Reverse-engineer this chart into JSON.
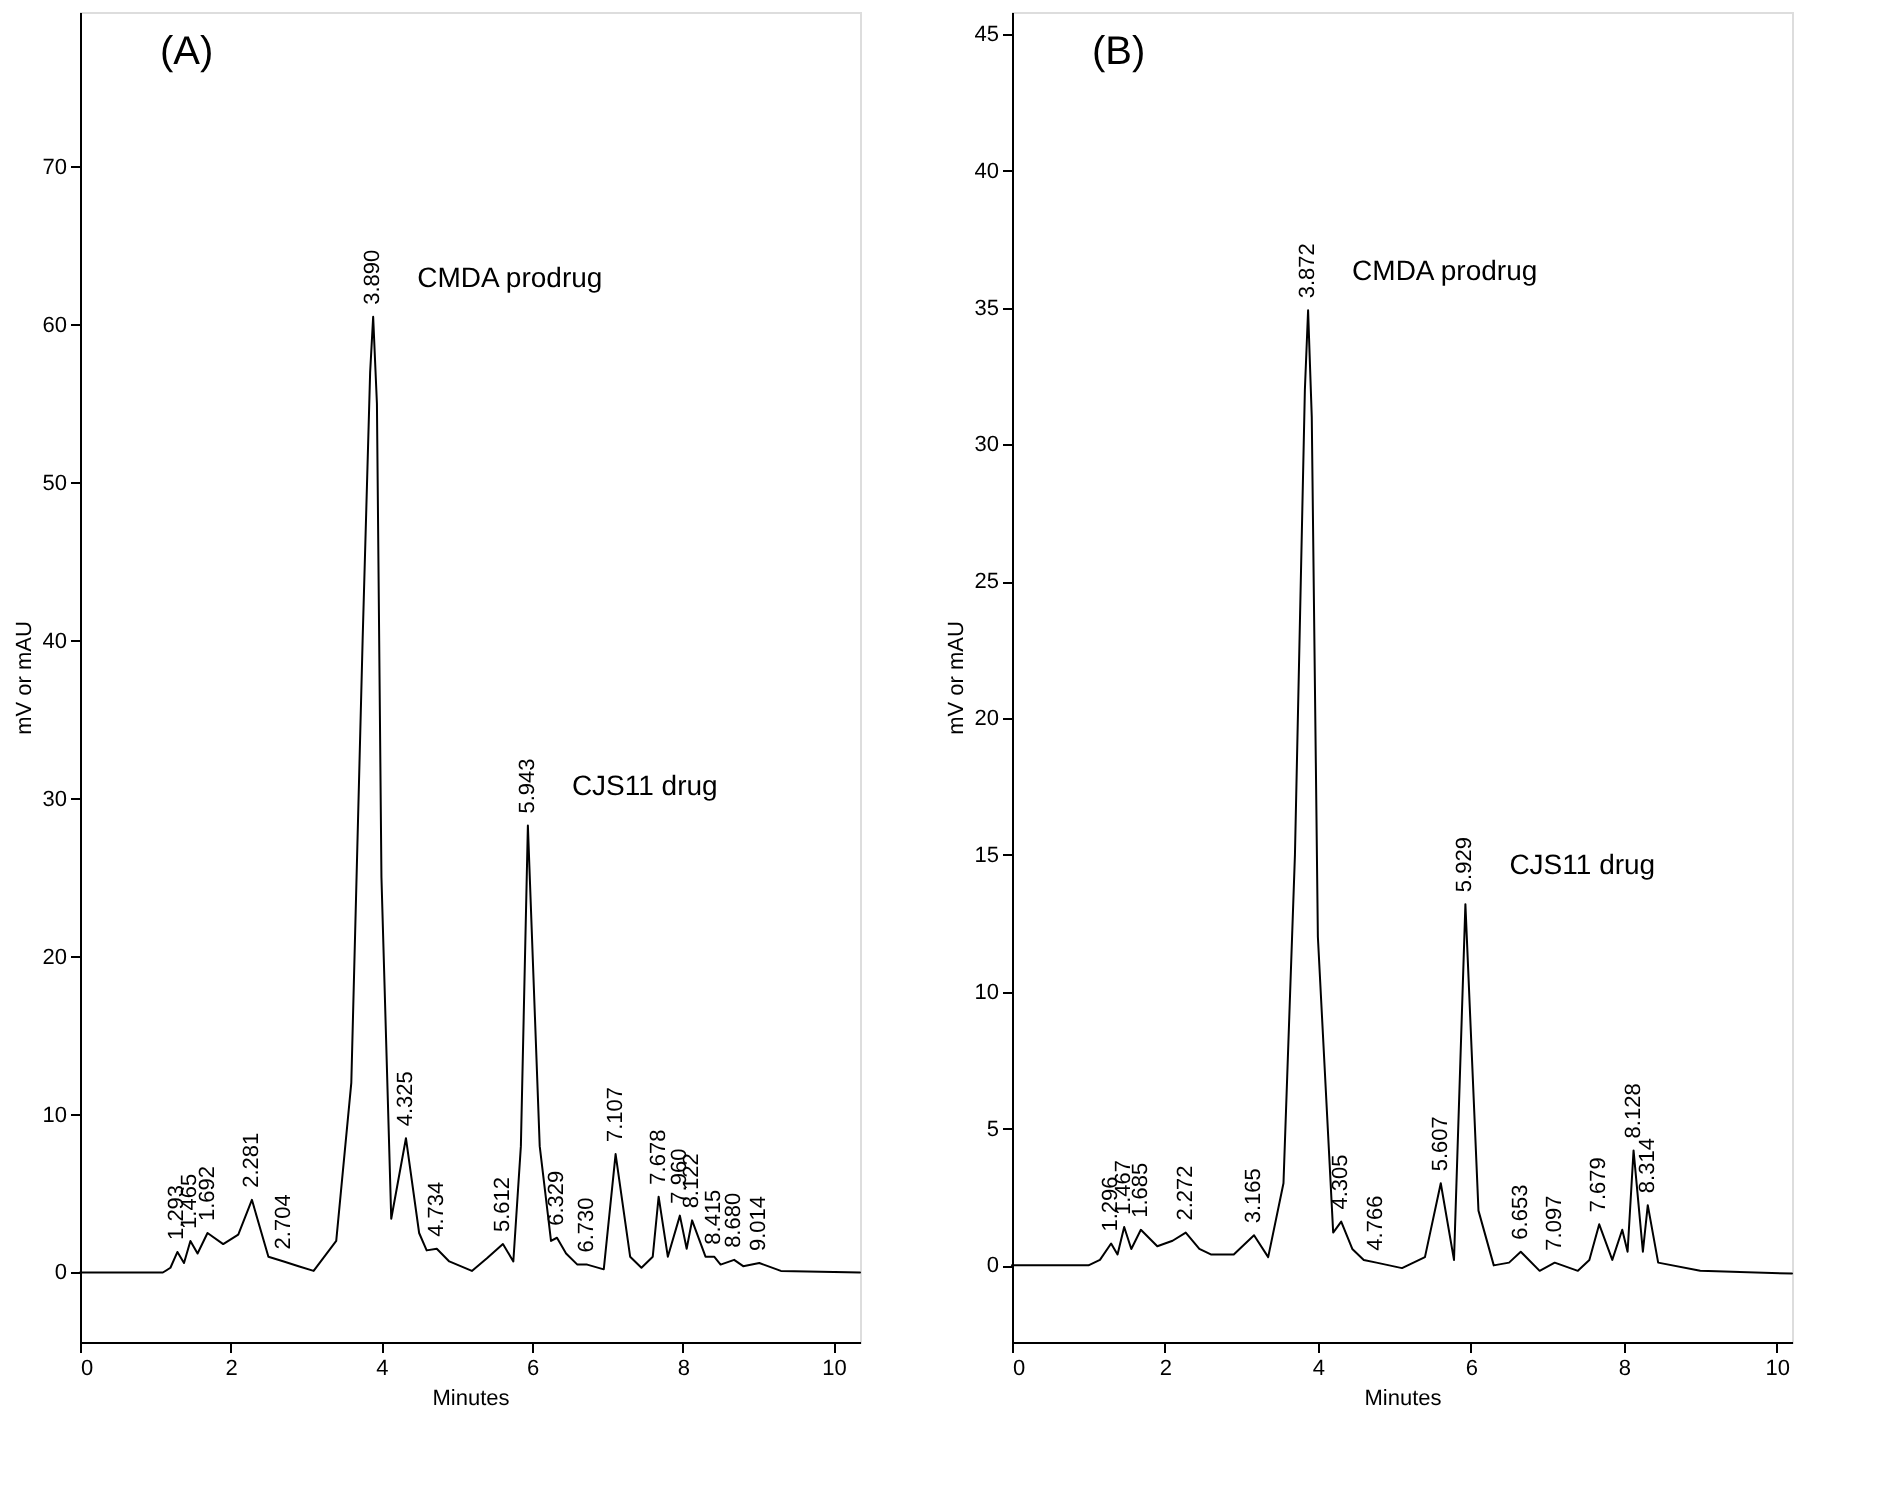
{
  "chart_data": [
    {
      "type": "line",
      "xlabel": "Minutes",
      "ylabel": "mV or mAU",
      "xlim": [
        0,
        10.35
      ],
      "ylim": [
        -4.4,
        79.8
      ],
      "xticks": [
        0,
        2,
        4,
        6,
        8,
        10
      ],
      "yticks": [
        0,
        10,
        20,
        30,
        40,
        50,
        60,
        70
      ],
      "series": [
        {
          "color": "#000000",
          "x": [
            0,
            1.1,
            1.2,
            1.293,
            1.38,
            1.465,
            1.56,
            1.692,
            1.9,
            2.1,
            2.281,
            2.5,
            2.704,
            2.9,
            3.1,
            3.4,
            3.6,
            3.75,
            3.85,
            3.89,
            3.94,
            4.0,
            4.13,
            4.325,
            4.5,
            4.6,
            4.734,
            4.9,
            5.2,
            5.4,
            5.612,
            5.75,
            5.85,
            5.943,
            6.1,
            6.25,
            6.329,
            6.45,
            6.6,
            6.73,
            6.95,
            7.107,
            7.3,
            7.45,
            7.6,
            7.678,
            7.8,
            7.96,
            8.05,
            8.122,
            8.3,
            8.415,
            8.5,
            8.68,
            8.8,
            9.014,
            9.3,
            10.35
          ],
          "values": [
            0,
            0,
            0.3,
            1.3,
            0.6,
            2.0,
            1.2,
            2.5,
            1.8,
            2.4,
            4.6,
            1.0,
            0.7,
            0.4,
            0.1,
            2.0,
            12,
            40,
            57,
            60.5,
            55,
            25,
            3.4,
            8.5,
            2.5,
            1.4,
            1.5,
            0.7,
            0.1,
            0.9,
            1.8,
            0.7,
            8,
            28.3,
            8,
            2.0,
            2.2,
            1.2,
            0.5,
            0.5,
            0.2,
            7.5,
            1.0,
            0.3,
            1.0,
            4.8,
            1.0,
            3.6,
            1.5,
            3.3,
            1.0,
            1.0,
            0.5,
            0.8,
            0.4,
            0.6,
            0.1,
            0
          ]
        }
      ],
      "annotations": [
        "(A)",
        {
          "text": "CMDA prodrug",
          "x": 3.89,
          "y": 60.5
        },
        {
          "text": "CJS11 drug",
          "x": 5.943,
          "y": 28.3
        },
        {
          "text": "1.293",
          "x": 1.293,
          "y": 1.3
        },
        {
          "text": "1.465",
          "x": 1.465,
          "y": 2.0
        },
        {
          "text": "1.692",
          "x": 1.692,
          "y": 2.5
        },
        {
          "text": "2.281",
          "x": 2.281,
          "y": 4.6
        },
        {
          "text": "2.704",
          "x": 2.704,
          "y": 0.7
        },
        {
          "text": "3.890",
          "x": 3.89,
          "y": 60.5
        },
        {
          "text": "4.325",
          "x": 4.325,
          "y": 8.5
        },
        {
          "text": "4.734",
          "x": 4.734,
          "y": 1.5
        },
        {
          "text": "5.612",
          "x": 5.612,
          "y": 1.8
        },
        {
          "text": "5.943",
          "x": 5.943,
          "y": 28.3
        },
        {
          "text": "6.329",
          "x": 6.329,
          "y": 2.2
        },
        {
          "text": "6.730",
          "x": 6.73,
          "y": 0.5
        },
        {
          "text": "7.107",
          "x": 7.107,
          "y": 7.5
        },
        {
          "text": "7.678",
          "x": 7.678,
          "y": 4.8
        },
        {
          "text": "7.960",
          "x": 7.96,
          "y": 3.6
        },
        {
          "text": "8.122",
          "x": 8.122,
          "y": 3.3
        },
        {
          "text": "8.415",
          "x": 8.415,
          "y": 1.0
        },
        {
          "text": "8.680",
          "x": 8.68,
          "y": 0.8
        },
        {
          "text": "9.014",
          "x": 9.014,
          "y": 0.6
        }
      ]
    },
    {
      "type": "line",
      "xlabel": "Minutes",
      "ylabel": "mV or mAU",
      "xlim": [
        0,
        10.2
      ],
      "ylim": [
        -2.8,
        45.8
      ],
      "xticks": [
        0,
        2,
        4,
        6,
        8,
        10
      ],
      "yticks": [
        0,
        5,
        10,
        15,
        20,
        25,
        30,
        35,
        40,
        45
      ],
      "series": [
        {
          "color": "#000000",
          "x": [
            0,
            1.0,
            1.15,
            1.296,
            1.38,
            1.467,
            1.56,
            1.685,
            1.9,
            2.1,
            2.272,
            2.45,
            2.6,
            2.9,
            3.165,
            3.35,
            3.55,
            3.7,
            3.83,
            3.872,
            3.92,
            4.0,
            4.2,
            4.305,
            4.45,
            4.6,
            4.766,
            5.1,
            5.4,
            5.607,
            5.78,
            5.929,
            6.1,
            6.3,
            6.5,
            6.653,
            6.9,
            7.097,
            7.4,
            7.55,
            7.679,
            7.85,
            7.98,
            8.05,
            8.128,
            8.25,
            8.314,
            8.45,
            9.0,
            10.2
          ],
          "values": [
            0,
            0,
            0.2,
            0.8,
            0.4,
            1.4,
            0.6,
            1.3,
            0.7,
            0.9,
            1.2,
            0.6,
            0.4,
            0.4,
            1.1,
            0.3,
            3,
            15,
            32,
            34.9,
            31,
            12,
            1.2,
            1.6,
            0.6,
            0.2,
            0.1,
            -0.1,
            0.3,
            3.0,
            0.2,
            13.2,
            2,
            0,
            0.1,
            0.5,
            -0.2,
            0.1,
            -0.2,
            0.2,
            1.5,
            0.2,
            1.3,
            0.5,
            4.2,
            0.5,
            2.2,
            0.1,
            -0.2,
            -0.3
          ]
        }
      ],
      "annotations": [
        "(B)",
        {
          "text": "CMDA prodrug",
          "x": 3.872,
          "y": 34.9
        },
        {
          "text": "CJS11 drug",
          "x": 5.929,
          "y": 13.2
        },
        {
          "text": "1.296",
          "x": 1.296,
          "y": 0.8
        },
        {
          "text": "1.467",
          "x": 1.467,
          "y": 1.4
        },
        {
          "text": "1.685",
          "x": 1.685,
          "y": 1.3
        },
        {
          "text": "2.272",
          "x": 2.272,
          "y": 1.2
        },
        {
          "text": "3.165",
          "x": 3.165,
          "y": 1.1
        },
        {
          "text": "3.872",
          "x": 3.872,
          "y": 34.9
        },
        {
          "text": "4.305",
          "x": 4.305,
          "y": 1.6
        },
        {
          "text": "4.766",
          "x": 4.766,
          "y": 0.1
        },
        {
          "text": "5.607",
          "x": 5.607,
          "y": 3.0
        },
        {
          "text": "5.929",
          "x": 5.929,
          "y": 13.2
        },
        {
          "text": "6.653",
          "x": 6.653,
          "y": 0.5
        },
        {
          "text": "7.097",
          "x": 7.097,
          "y": 0.1
        },
        {
          "text": "7.679",
          "x": 7.679,
          "y": 1.5
        },
        {
          "text": "8.128",
          "x": 8.128,
          "y": 4.2
        },
        {
          "text": "8.314",
          "x": 8.314,
          "y": 2.2
        }
      ]
    }
  ]
}
